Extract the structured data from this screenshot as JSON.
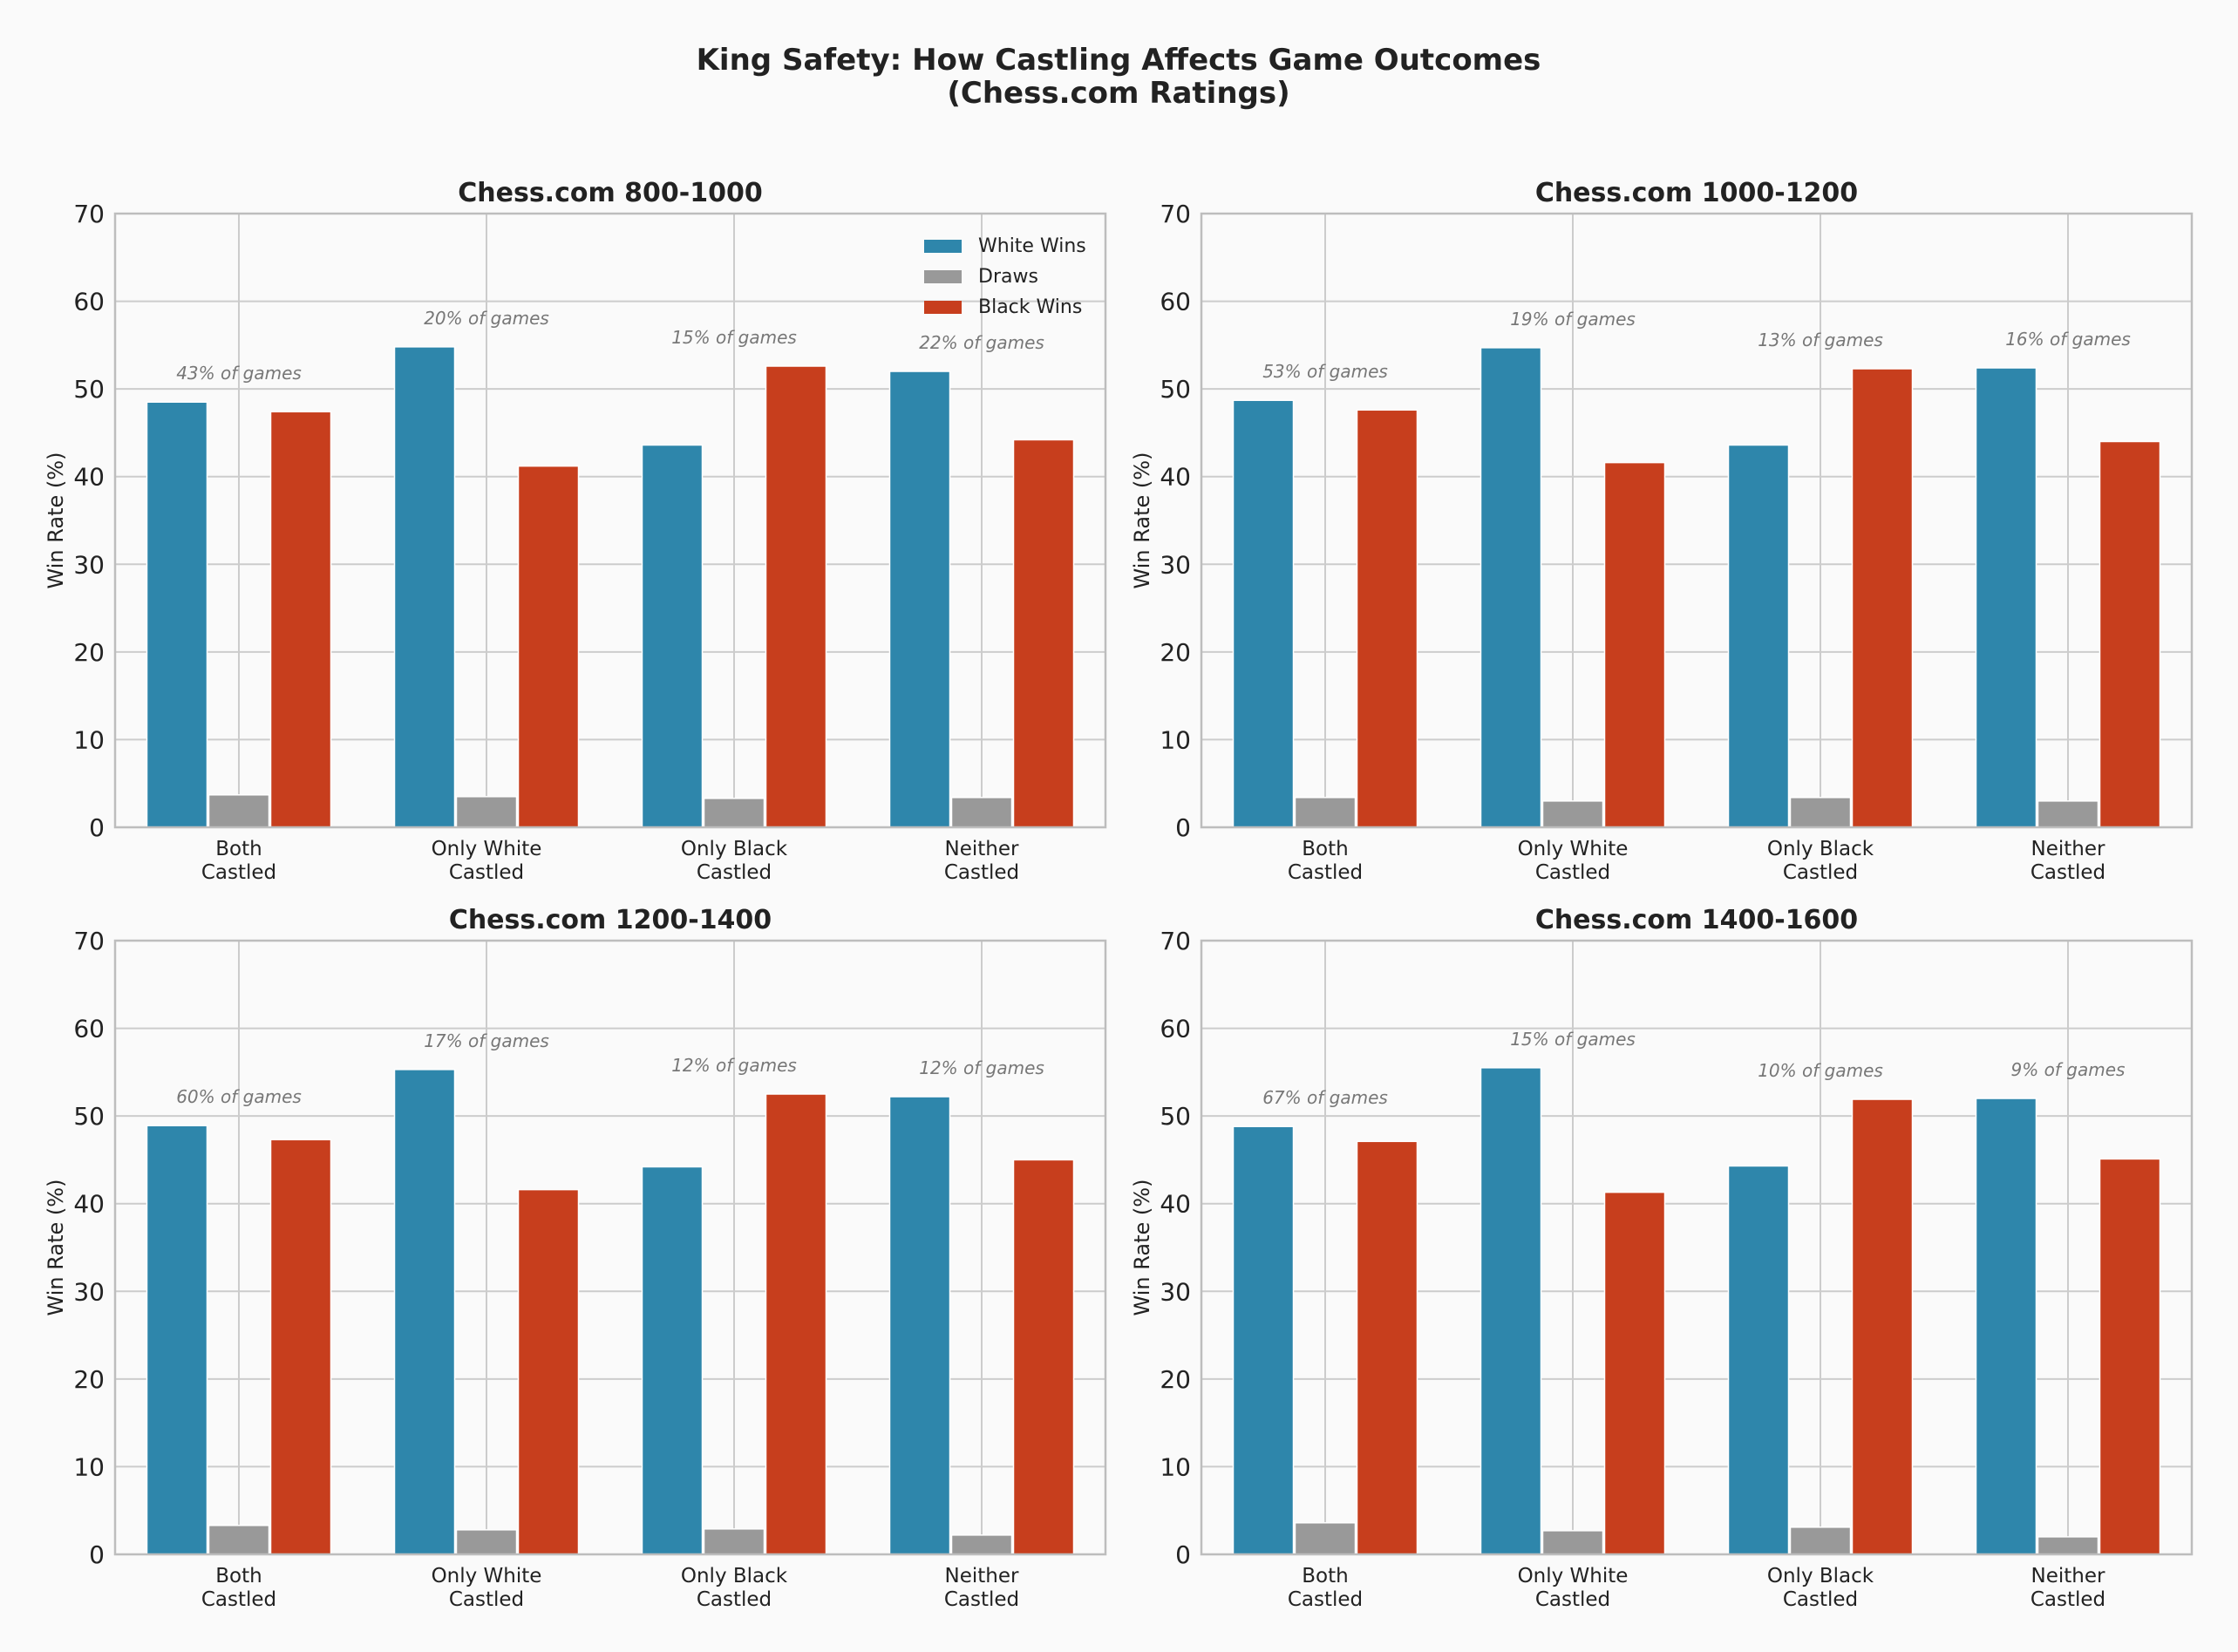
{
  "figure": {
    "title_line1": "King Safety: How Castling Affects Game Outcomes",
    "title_line2": "(Chess.com Ratings)"
  },
  "colors": {
    "white_wins": "#2e86ab",
    "draws": "#999999",
    "black_wins": "#c73e1d",
    "grid": "#cccccc",
    "axis": "#bdbdbd",
    "text": "#222222",
    "annotation": "#777777",
    "background": "#fafafa"
  },
  "chart_data": [
    {
      "type": "bar",
      "title": "Chess.com 800-1000",
      "ylabel": "Win Rate (%)",
      "ylim": [
        0,
        70
      ],
      "yticks": [
        0,
        10,
        20,
        30,
        40,
        50,
        60,
        70
      ],
      "categories": [
        [
          "Both",
          "Castled"
        ],
        [
          "Only White",
          "Castled"
        ],
        [
          "Only Black",
          "Castled"
        ],
        [
          "Neither",
          "Castled"
        ]
      ],
      "series": [
        {
          "name": "White Wins",
          "values": [
            48.5,
            54.8,
            43.6,
            52.0
          ]
        },
        {
          "name": "Draws",
          "values": [
            3.7,
            3.5,
            3.3,
            3.4
          ]
        },
        {
          "name": "Black Wins",
          "values": [
            47.4,
            41.2,
            52.6,
            44.2
          ]
        }
      ],
      "annotations": [
        "43% of games",
        "20% of games",
        "15% of games",
        "22% of games"
      ],
      "legend": "top-right",
      "grid": true
    },
    {
      "type": "bar",
      "title": "Chess.com 1000-1200",
      "ylabel": "Win Rate (%)",
      "ylim": [
        0,
        70
      ],
      "yticks": [
        0,
        10,
        20,
        30,
        40,
        50,
        60,
        70
      ],
      "categories": [
        [
          "Both",
          "Castled"
        ],
        [
          "Only White",
          "Castled"
        ],
        [
          "Only Black",
          "Castled"
        ],
        [
          "Neither",
          "Castled"
        ]
      ],
      "series": [
        {
          "name": "White Wins",
          "values": [
            48.7,
            54.7,
            43.6,
            52.4
          ]
        },
        {
          "name": "Draws",
          "values": [
            3.4,
            3.0,
            3.4,
            3.0
          ]
        },
        {
          "name": "Black Wins",
          "values": [
            47.6,
            41.6,
            52.3,
            44.0
          ]
        }
      ],
      "annotations": [
        "53% of games",
        "19% of games",
        "13% of games",
        "16% of games"
      ],
      "grid": true
    },
    {
      "type": "bar",
      "title": "Chess.com 1200-1400",
      "ylabel": "Win Rate (%)",
      "ylim": [
        0,
        70
      ],
      "yticks": [
        0,
        10,
        20,
        30,
        40,
        50,
        60,
        70
      ],
      "categories": [
        [
          "Both",
          "Castled"
        ],
        [
          "Only White",
          "Castled"
        ],
        [
          "Only Black",
          "Castled"
        ],
        [
          "Neither",
          "Castled"
        ]
      ],
      "series": [
        {
          "name": "White Wins",
          "values": [
            48.9,
            55.3,
            44.2,
            52.2
          ]
        },
        {
          "name": "Draws",
          "values": [
            3.3,
            2.8,
            2.9,
            2.2
          ]
        },
        {
          "name": "Black Wins",
          "values": [
            47.3,
            41.6,
            52.5,
            45.0
          ]
        }
      ],
      "annotations": [
        "60% of games",
        "17% of games",
        "12% of games",
        "12% of games"
      ],
      "grid": true
    },
    {
      "type": "bar",
      "title": "Chess.com 1400-1600",
      "ylabel": "Win Rate (%)",
      "ylim": [
        0,
        70
      ],
      "yticks": [
        0,
        10,
        20,
        30,
        40,
        50,
        60,
        70
      ],
      "categories": [
        [
          "Both",
          "Castled"
        ],
        [
          "Only White",
          "Castled"
        ],
        [
          "Only Black",
          "Castled"
        ],
        [
          "Neither",
          "Castled"
        ]
      ],
      "series": [
        {
          "name": "White Wins",
          "values": [
            48.8,
            55.5,
            44.3,
            52.0
          ]
        },
        {
          "name": "Draws",
          "values": [
            3.6,
            2.7,
            3.1,
            2.0
          ]
        },
        {
          "name": "Black Wins",
          "values": [
            47.1,
            41.3,
            51.9,
            45.1
          ]
        }
      ],
      "annotations": [
        "67% of games",
        "15% of games",
        "10% of games",
        "9% of games"
      ],
      "grid": true
    }
  ]
}
